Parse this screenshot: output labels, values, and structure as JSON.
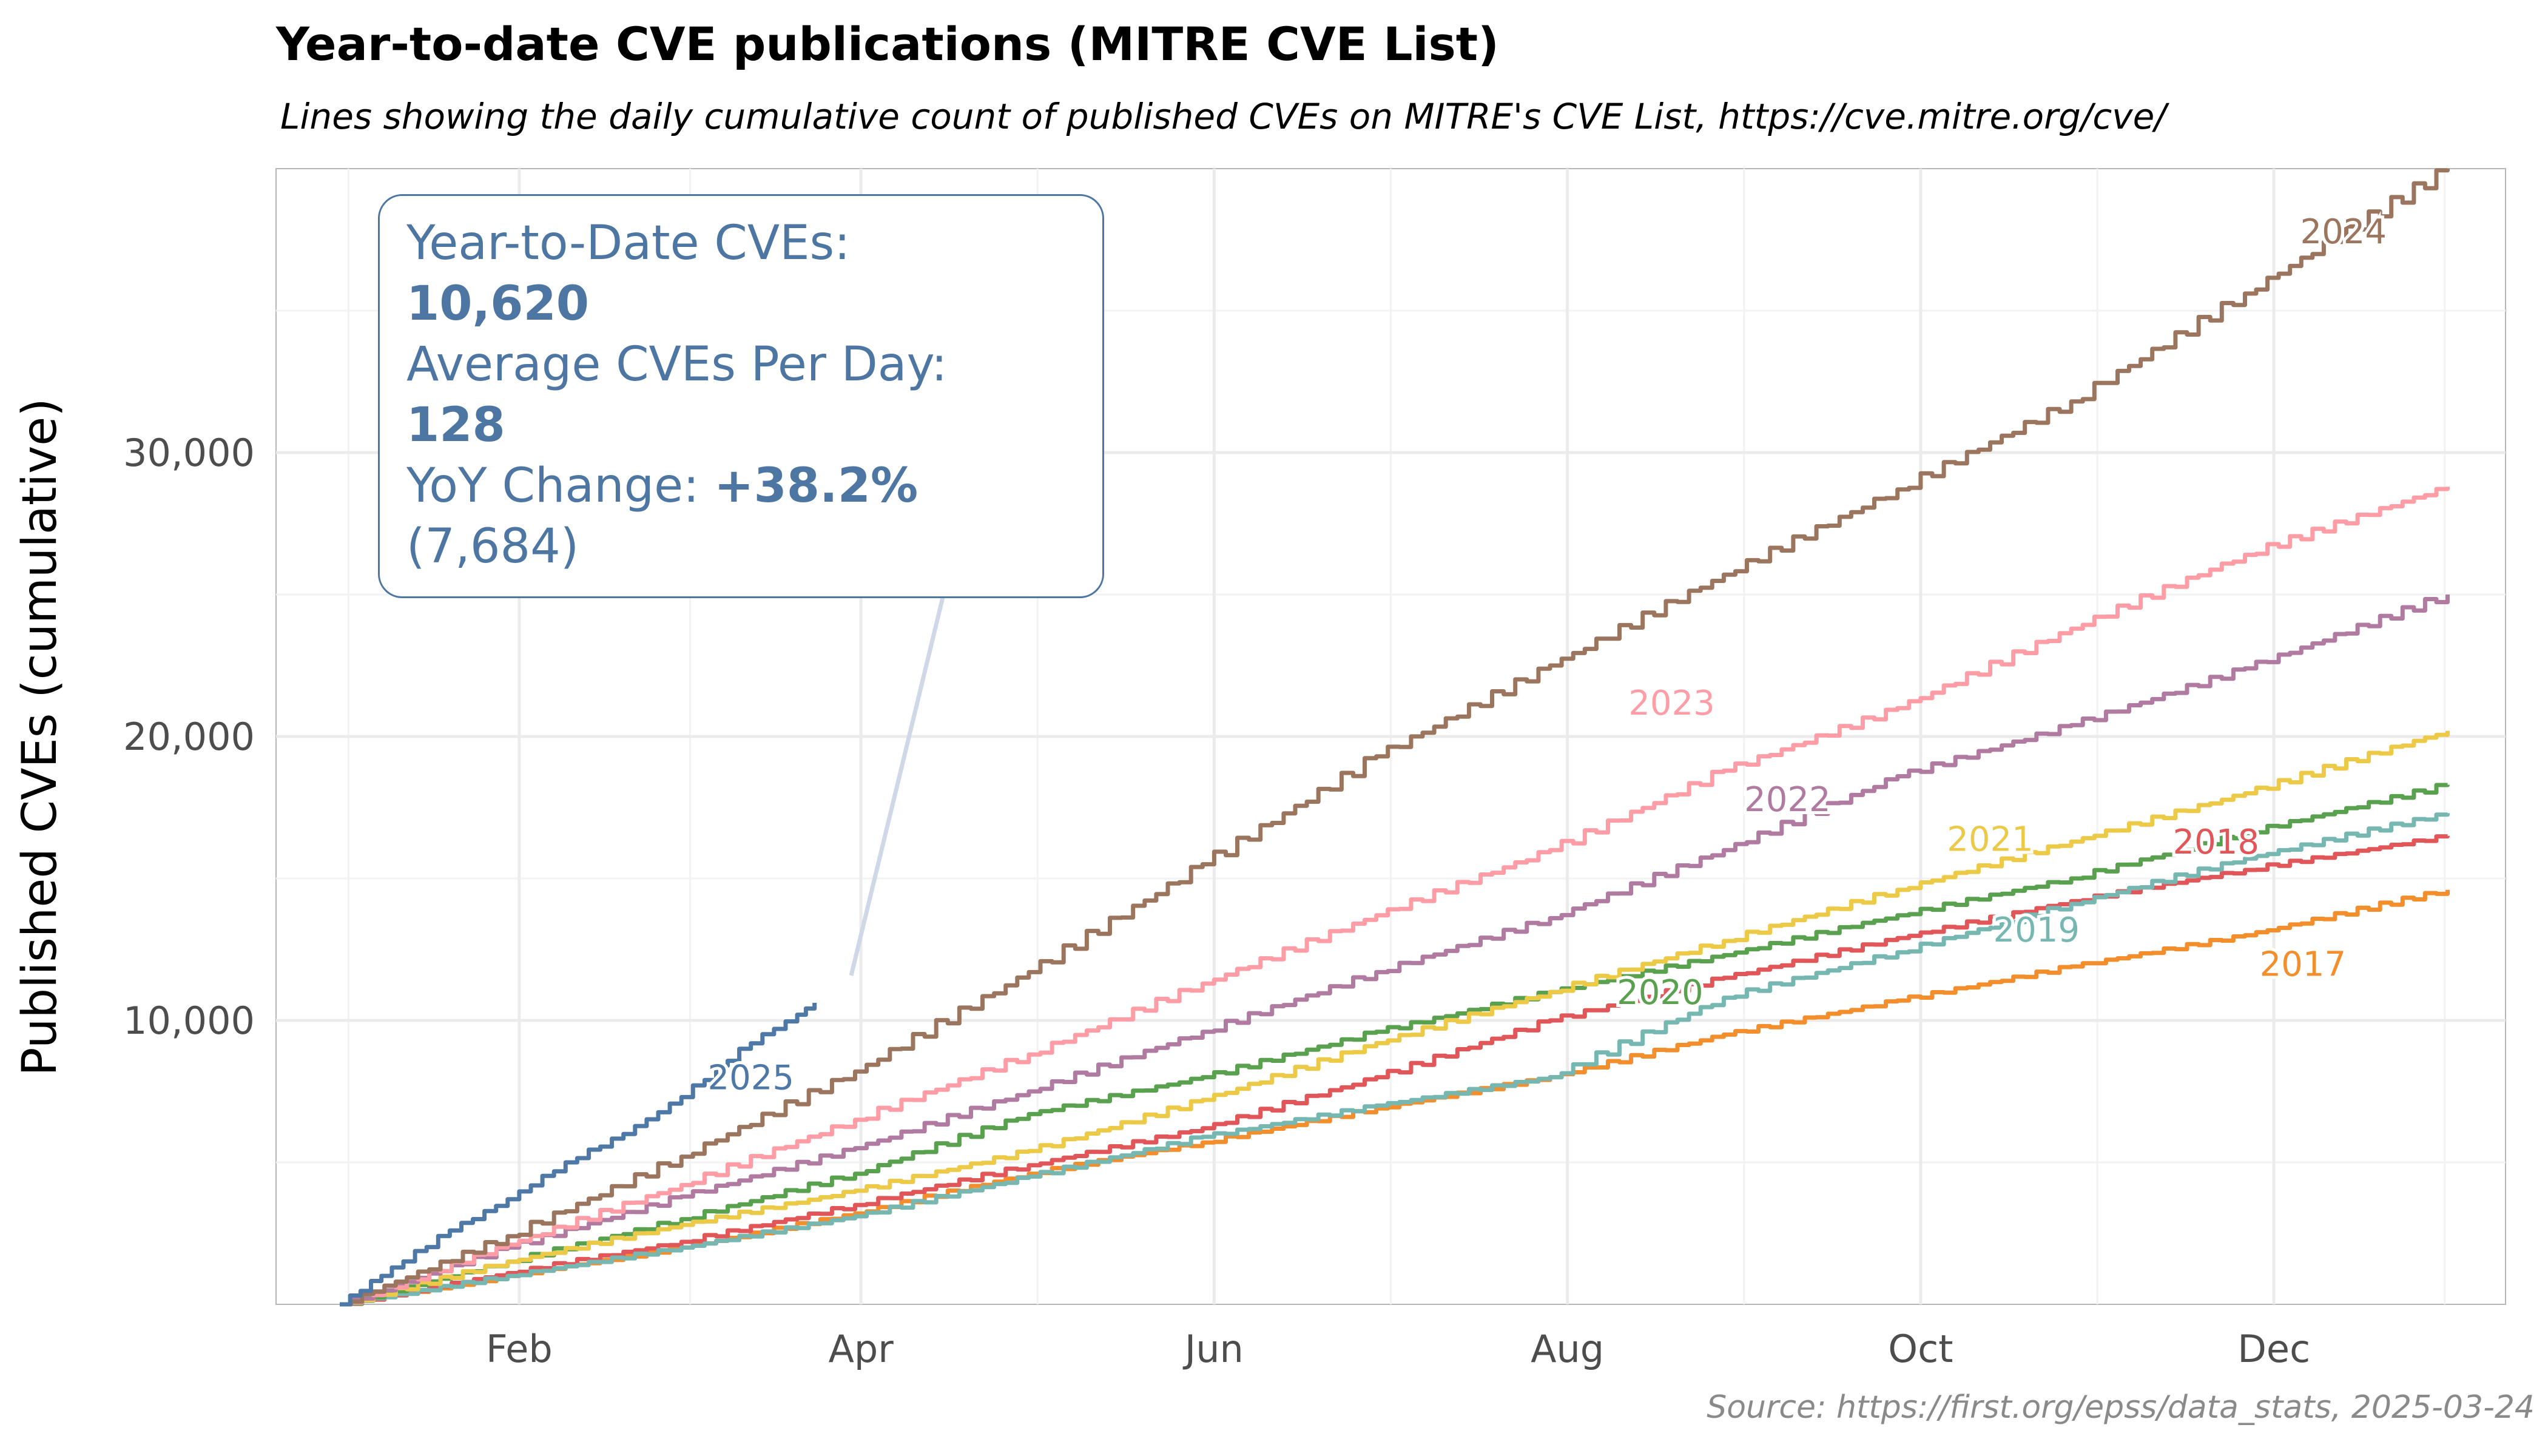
{
  "title": "Year-to-date CVE publications (MITRE CVE List)",
  "subtitle": "Lines showing the daily cumulative count of published CVEs on MITRE's CVE List, https://cve.mitre.org/cve/",
  "source": "Source: https://first.org/epss/data_stats, 2025-03-24",
  "annotation": {
    "line1": "Year-to-Date CVEs:",
    "ytd_value": "10,620",
    "line3": "Average CVEs Per Day:",
    "avg_value": "128",
    "yoy_label": "YoY Change: ",
    "yoy_value": "+38.2%",
    "yoy_count": "(7,684)"
  },
  "chart_data": {
    "type": "line",
    "title": "Year-to-date CVE publications (MITRE CVE List)",
    "ylabel": "Published CVEs (cumulative)",
    "xlabel": "",
    "x_unit": "day of year",
    "xlim": [
      -10,
      375
    ],
    "ylim": [
      0,
      40000
    ],
    "x_ticks": [
      {
        "x": 32,
        "label": "Feb"
      },
      {
        "x": 91,
        "label": "Apr"
      },
      {
        "x": 152,
        "label": "Jun"
      },
      {
        "x": 213,
        "label": "Aug"
      },
      {
        "x": 274,
        "label": "Oct"
      },
      {
        "x": 335,
        "label": "Dec"
      }
    ],
    "y_ticks": [
      {
        "y": 10000,
        "label": "10,000"
      },
      {
        "y": 20000,
        "label": "20,000"
      },
      {
        "y": 30000,
        "label": "30,000"
      }
    ],
    "grid": true,
    "legend": "none (direct labels)",
    "series": [
      {
        "name": "2017",
        "color": "#f28e2b",
        "label_at": [
          340,
          12000
        ],
        "x": [
          1,
          30,
          60,
          90,
          120,
          150,
          180,
          210,
          240,
          270,
          300,
          330,
          365
        ],
        "y": [
          0,
          1000,
          2000,
          3200,
          4600,
          5700,
          6900,
          8000,
          9500,
          10700,
          11900,
          13000,
          14600
        ]
      },
      {
        "name": "2018",
        "color": "#e15759",
        "label_at": [
          325,
          16300
        ],
        "x": [
          1,
          30,
          60,
          90,
          120,
          150,
          180,
          210,
          240,
          270,
          300,
          330,
          365
        ],
        "y": [
          0,
          1100,
          2200,
          3500,
          4900,
          6200,
          8000,
          10000,
          11500,
          12900,
          14200,
          15300,
          16500
        ]
      },
      {
        "name": "2019",
        "color": "#76b7b2",
        "label_at": [
          294,
          13200
        ],
        "x": [
          1,
          30,
          60,
          90,
          120,
          150,
          180,
          210,
          240,
          270,
          300,
          330,
          365
        ],
        "y": [
          0,
          1000,
          2000,
          3100,
          4500,
          5900,
          7000,
          8000,
          10800,
          12400,
          14100,
          15700,
          17300
        ]
      },
      {
        "name": "2020",
        "color": "#59a14f",
        "label_at": [
          229,
          11000
        ],
        "x": [
          1,
          30,
          60,
          90,
          120,
          150,
          180,
          210,
          240,
          270,
          300,
          330,
          365
        ],
        "y": [
          0,
          1500,
          3000,
          4600,
          6700,
          8000,
          9600,
          11000,
          12300,
          13700,
          15000,
          16600,
          18300
        ]
      },
      {
        "name": "2021",
        "color": "#edc948",
        "label_at": [
          286,
          16400
        ],
        "x": [
          1,
          30,
          60,
          90,
          120,
          150,
          180,
          210,
          240,
          270,
          300,
          330,
          365
        ],
        "y": [
          0,
          1500,
          2800,
          4000,
          5400,
          7200,
          9200,
          11000,
          12800,
          14600,
          16300,
          18000,
          20200
        ]
      },
      {
        "name": "2022",
        "color": "#b07aa1",
        "label_at": [
          251,
          17800
        ],
        "x": [
          1,
          30,
          60,
          90,
          120,
          150,
          180,
          210,
          240,
          270,
          300,
          330,
          365
        ],
        "y": [
          0,
          2000,
          3800,
          5500,
          7500,
          9600,
          11700,
          13600,
          16000,
          18600,
          20400,
          22400,
          25000
        ]
      },
      {
        "name": "2023",
        "color": "#ff9da7",
        "label_at": [
          231,
          21200
        ],
        "x": [
          1,
          30,
          60,
          90,
          120,
          150,
          180,
          210,
          240,
          270,
          300,
          330,
          365
        ],
        "y": [
          0,
          2100,
          4200,
          6500,
          8800,
          11300,
          13700,
          16000,
          18800,
          21000,
          23800,
          26400,
          28800
        ]
      },
      {
        "name": "2024",
        "color": "#9c755f",
        "label_at": [
          347,
          37800
        ],
        "x": [
          1,
          30,
          60,
          90,
          120,
          150,
          180,
          210,
          240,
          270,
          300,
          330,
          365
        ],
        "y": [
          0,
          2400,
          5200,
          8200,
          11700,
          15500,
          19300,
          22500,
          25700,
          28700,
          31800,
          35600,
          40000
        ]
      },
      {
        "name": "2025",
        "color": "#4e79a7",
        "label_at": [
          72,
          8000
        ],
        "x": [
          1,
          10,
          20,
          30,
          40,
          50,
          60,
          70,
          80,
          83
        ],
        "y": [
          0,
          1300,
          2600,
          3700,
          5000,
          6000,
          7300,
          9000,
          10200,
          10620
        ]
      }
    ]
  }
}
